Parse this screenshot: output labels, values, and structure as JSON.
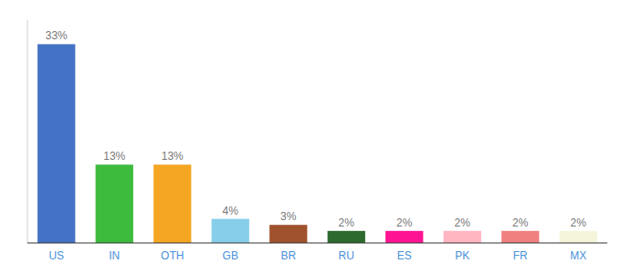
{
  "chart_data": {
    "type": "bar",
    "categories": [
      "US",
      "IN",
      "OTH",
      "GB",
      "BR",
      "RU",
      "ES",
      "PK",
      "FR",
      "MX"
    ],
    "values": [
      33,
      13,
      13,
      4,
      3,
      2,
      2,
      2,
      2,
      2
    ],
    "value_labels": [
      "33%",
      "13%",
      "13%",
      "4%",
      "3%",
      "2%",
      "2%",
      "2%",
      "2%",
      "2%"
    ],
    "colors": [
      "#4472c4",
      "#3dbb3d",
      "#f5a623",
      "#87ceeb",
      "#a0522d",
      "#2d6a2d",
      "#ff1493",
      "#ffb6c1",
      "#f08080",
      "#f5f5dc"
    ],
    "ylim": [
      0,
      37
    ],
    "data_labels": true,
    "tick_labels": "x",
    "grid": false
  }
}
